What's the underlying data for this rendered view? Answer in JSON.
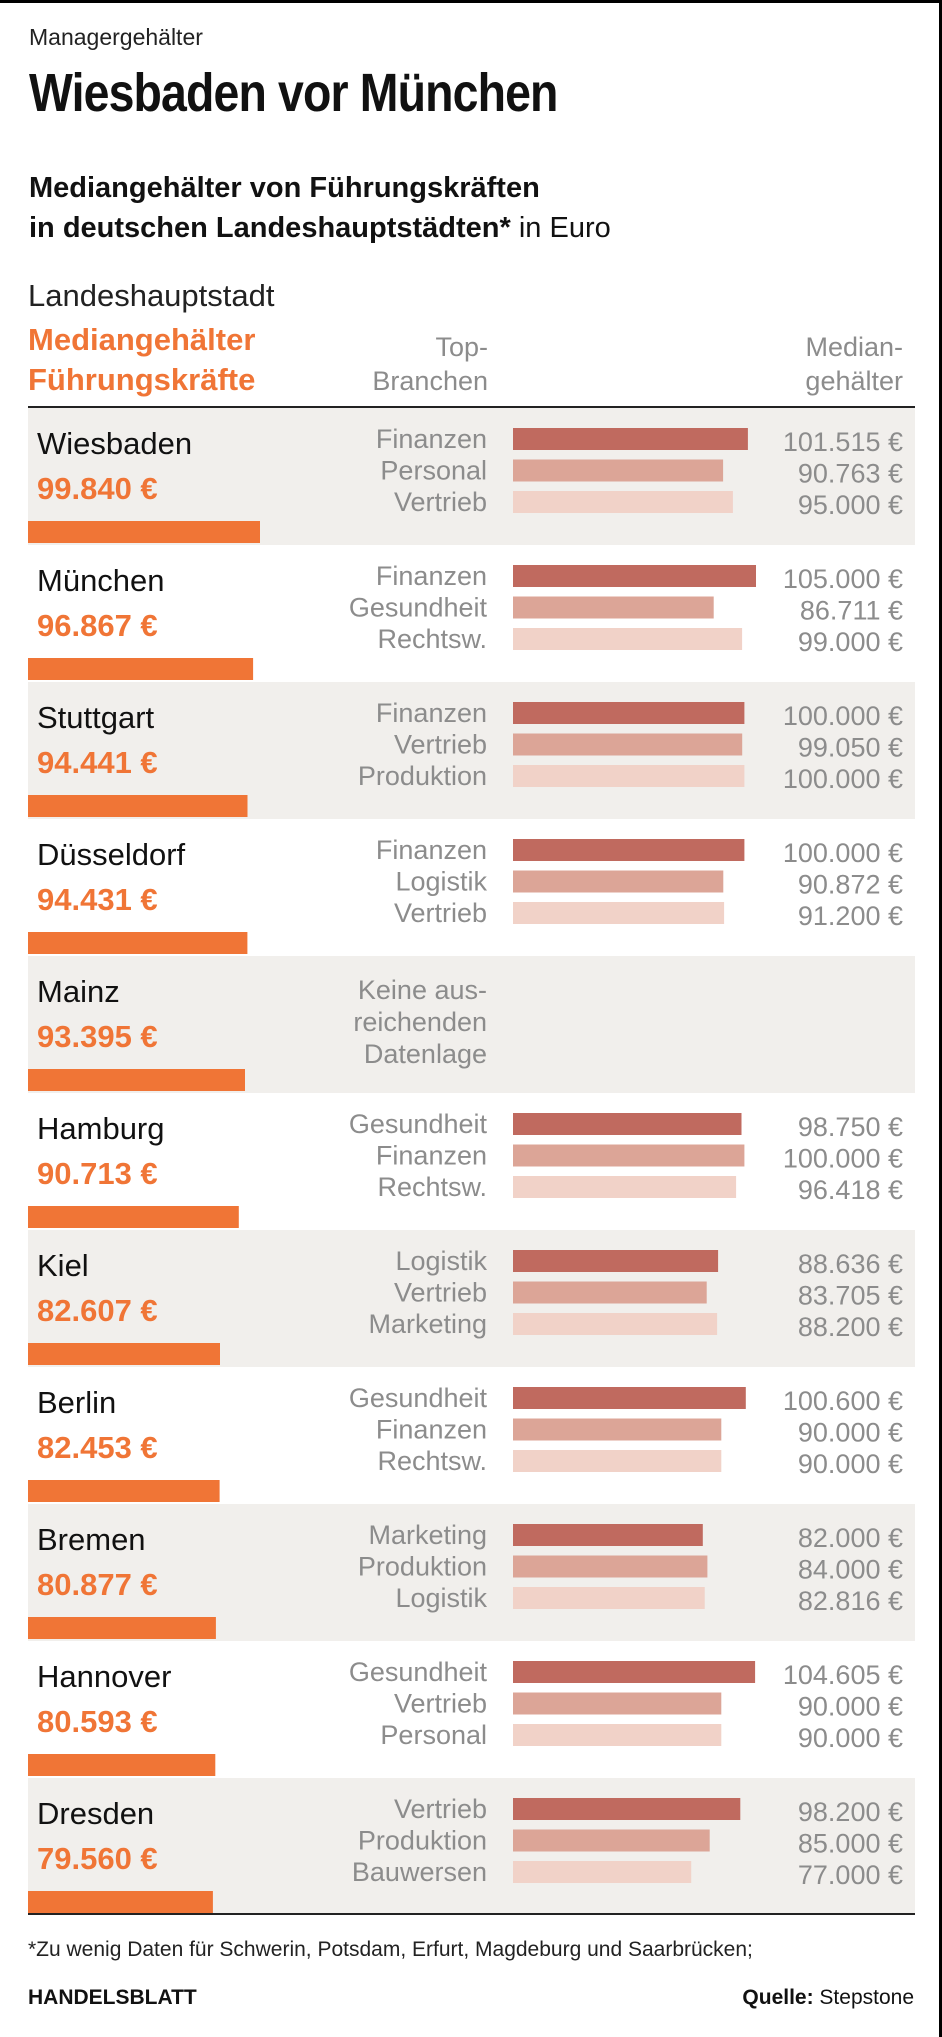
{
  "kicker": "Managergehälter",
  "headline": "Wiesbaden vor München",
  "subtitle": {
    "line1": "Mediangehälter von Führungskräften",
    "line2_bold": "in deutschen Landeshauptstädten*",
    "line2_rest": " in Euro"
  },
  "header": {
    "city_label": "Landeshauptstadt",
    "salary_label_1": "Mediangehälter",
    "salary_label_2": "Führungskräfte",
    "branch_label_1": "Top-",
    "branch_label_2": "Branchen",
    "median_label_1": "Median-",
    "median_label_2": "gehälter"
  },
  "colors": {
    "accent": "#f07536",
    "stripe": "#f1efec",
    "bar1": "#c06a5f",
    "bar2": "#dca597",
    "bar3": "#f1d2c8"
  },
  "chart_data": {
    "type": "bar",
    "unit": "Euro",
    "categories": [
      "Wiesbaden",
      "München",
      "Stuttgart",
      "Düsseldorf",
      "Mainz",
      "Hamburg",
      "Kiel",
      "Berlin",
      "Bremen",
      "Hannover",
      "Dresden"
    ],
    "values": [
      99840,
      96867,
      94441,
      94431,
      93395,
      90713,
      82607,
      82453,
      80877,
      80593,
      79560
    ],
    "value_labels": [
      "99.840 €",
      "96.867 €",
      "94.441 €",
      "94.431 €",
      "93.395 €",
      "90.713 €",
      "82.607 €",
      "82.453 €",
      "80.877 €",
      "80.593 €",
      "79.560 €"
    ],
    "rows": [
      {
        "city": "Wiesbaden",
        "salary": 99840,
        "salary_label": "99.840 €",
        "branches": [
          {
            "name": "Finanzen",
            "value": 101515,
            "label": "101.515 €"
          },
          {
            "name": "Personal",
            "value": 90763,
            "label": "90.763 €"
          },
          {
            "name": "Vertrieb",
            "value": 95000,
            "label": "95.000 €"
          }
        ]
      },
      {
        "city": "München",
        "salary": 96867,
        "salary_label": "96.867 €",
        "branches": [
          {
            "name": "Finanzen",
            "value": 105000,
            "label": "105.000 €"
          },
          {
            "name": "Gesundheit",
            "value": 86711,
            "label": "86.711 €"
          },
          {
            "name": "Rechtsw.",
            "value": 99000,
            "label": "99.000 €"
          }
        ]
      },
      {
        "city": "Stuttgart",
        "salary": 94441,
        "salary_label": "94.441 €",
        "branches": [
          {
            "name": "Finanzen",
            "value": 100000,
            "label": "100.000 €"
          },
          {
            "name": "Vertrieb",
            "value": 99050,
            "label": "99.050 €"
          },
          {
            "name": "Produktion",
            "value": 100000,
            "label": "100.000 €"
          }
        ]
      },
      {
        "city": "Düsseldorf",
        "salary": 94431,
        "salary_label": "94.431 €",
        "branches": [
          {
            "name": "Finanzen",
            "value": 100000,
            "label": "100.000 €"
          },
          {
            "name": "Logistik",
            "value": 90872,
            "label": "90.872 €"
          },
          {
            "name": "Vertrieb",
            "value": 91200,
            "label": "91.200 €"
          }
        ]
      },
      {
        "city": "Mainz",
        "salary": 93395,
        "salary_label": "93.395 €",
        "note": [
          "Keine aus-",
          "reichenden",
          "Datenlage"
        ],
        "branches": []
      },
      {
        "city": "Hamburg",
        "salary": 90713,
        "salary_label": "90.713 €",
        "branches": [
          {
            "name": "Gesundheit",
            "value": 98750,
            "label": "98.750 €"
          },
          {
            "name": "Finanzen",
            "value": 100000,
            "label": "100.000 €"
          },
          {
            "name": "Rechtsw.",
            "value": 96418,
            "label": "96.418 €"
          }
        ]
      },
      {
        "city": "Kiel",
        "salary": 82607,
        "salary_label": "82.607 €",
        "branches": [
          {
            "name": "Logistik",
            "value": 88636,
            "label": "88.636 €"
          },
          {
            "name": "Vertrieb",
            "value": 83705,
            "label": "83.705 €"
          },
          {
            "name": "Marketing",
            "value": 88200,
            "label": "88.200 €"
          }
        ]
      },
      {
        "city": "Berlin",
        "salary": 82453,
        "salary_label": "82.453 €",
        "branches": [
          {
            "name": "Gesundheit",
            "value": 100600,
            "label": "100.600 €"
          },
          {
            "name": "Finanzen",
            "value": 90000,
            "label": "90.000 €"
          },
          {
            "name": "Rechtsw.",
            "value": 90000,
            "label": "90.000 €"
          }
        ]
      },
      {
        "city": "Bremen",
        "salary": 80877,
        "salary_label": "80.877 €",
        "branches": [
          {
            "name": "Marketing",
            "value": 82000,
            "label": "82.000 €"
          },
          {
            "name": "Produktion",
            "value": 84000,
            "label": "84.000 €"
          },
          {
            "name": "Logistik",
            "value": 82816,
            "label": "82.816 €"
          }
        ]
      },
      {
        "city": "Hannover",
        "salary": 80593,
        "salary_label": "80.593 €",
        "branches": [
          {
            "name": "Gesundheit",
            "value": 104605,
            "label": "104.605 €"
          },
          {
            "name": "Vertrieb",
            "value": 90000,
            "label": "90.000 €"
          },
          {
            "name": "Personal",
            "value": 90000,
            "label": "90.000 €"
          }
        ]
      },
      {
        "city": "Dresden",
        "salary": 79560,
        "salary_label": "79.560 €",
        "branches": [
          {
            "name": "Vertrieb",
            "value": 98200,
            "label": "98.200 €"
          },
          {
            "name": "Produktion",
            "value": 85000,
            "label": "85.000 €"
          },
          {
            "name": "Bauwersen",
            "value": 77000,
            "label": "77.000 €"
          }
        ]
      }
    ]
  },
  "footnote": "*Zu wenig Daten für Schwerin, Potsdam, Erfurt, Magdeburg und Saarbrücken;",
  "brand": "HANDELSBLATT",
  "source_label": "Quelle:",
  "source_value": " Stepstone"
}
